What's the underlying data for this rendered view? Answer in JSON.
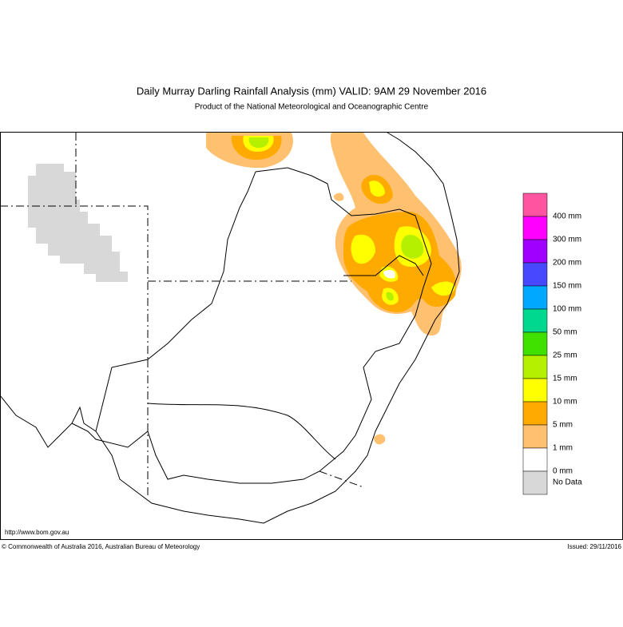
{
  "header": {
    "title": "Daily Murray Darling Rainfall Analysis (mm)  VALID: 9AM 29 November 2016",
    "subtitle": "Product of the National Meteorological and Oceanographic Centre"
  },
  "legend": {
    "items": [
      {
        "color": "#ff55a0",
        "label": "400 mm"
      },
      {
        "color": "#ff00ff",
        "label": "300 mm"
      },
      {
        "color": "#a000ff",
        "label": "200 mm"
      },
      {
        "color": "#4848ff",
        "label": "150 mm"
      },
      {
        "color": "#00a8ff",
        "label": "100 mm"
      },
      {
        "color": "#00d890",
        "label": "50 mm"
      },
      {
        "color": "#40e000",
        "label": "25 mm"
      },
      {
        "color": "#b4f000",
        "label": "15 mm"
      },
      {
        "color": "#ffff00",
        "label": "10 mm"
      },
      {
        "color": "#ffaa00",
        "label": "5 mm"
      },
      {
        "color": "#ffc070",
        "label": "1 mm"
      },
      {
        "color": "#ffffff",
        "label": "0 mm"
      },
      {
        "color": "#d8d8d8",
        "label": "No Data"
      }
    ]
  },
  "footer": {
    "url": "http://www.bom.gov.au",
    "copyright": "© Commonwealth of Australia 2016, Australian Bureau of Meteorology",
    "issued": "Issued: 29/11/2016"
  }
}
